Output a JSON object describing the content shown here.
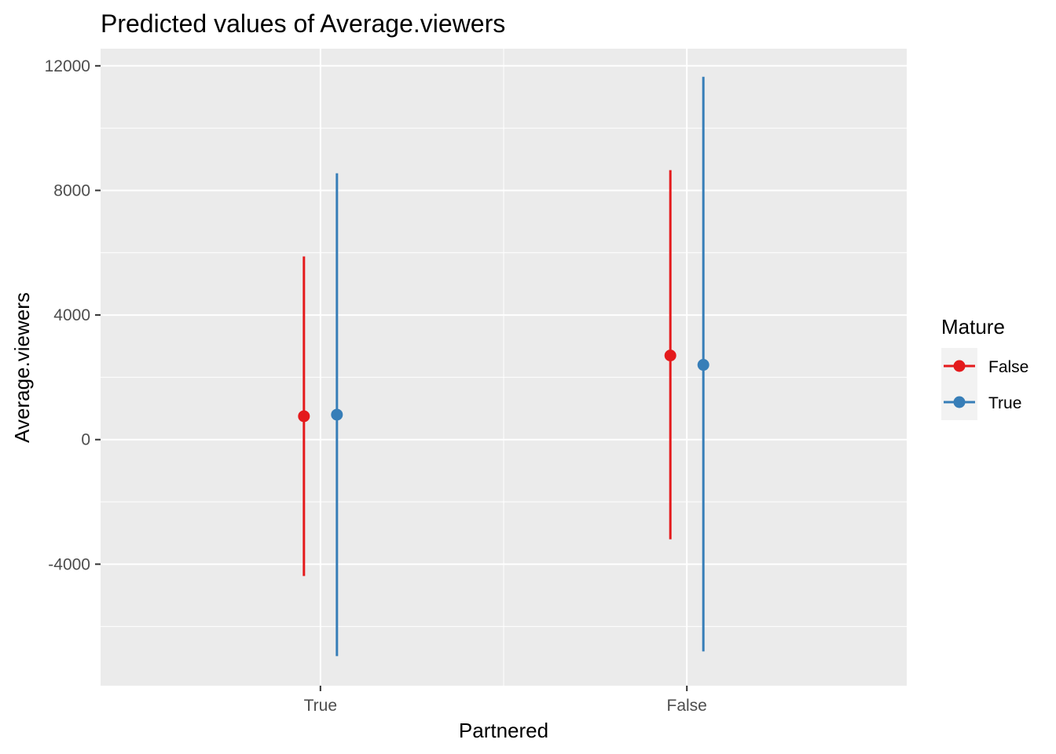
{
  "chart_data": {
    "type": "errorbar",
    "title": "Predicted values of Average.viewers",
    "xlabel": "Partnered",
    "ylabel": "Average.viewers",
    "categories": [
      "True",
      "False"
    ],
    "yticks": [
      -4000,
      0,
      4000,
      8000,
      12000
    ],
    "ytick_labels": [
      "-4000",
      "0",
      "4000",
      "8000",
      "12000"
    ],
    "ylim": [
      -7900,
      12550
    ],
    "grid": true,
    "legend": {
      "title": "Mature",
      "position": "right",
      "entries": [
        "False",
        "True"
      ]
    },
    "series": [
      {
        "name": "False",
        "color": "#E41A1C",
        "points": [
          {
            "x": "True",
            "y": 750,
            "low": -4380,
            "high": 5880
          },
          {
            "x": "False",
            "y": 2700,
            "low": -3200,
            "high": 8650
          }
        ]
      },
      {
        "name": "True",
        "color": "#377EB8",
        "points": [
          {
            "x": "True",
            "y": 800,
            "low": -6950,
            "high": 8550
          },
          {
            "x": "False",
            "y": 2400,
            "low": -6800,
            "high": 11650
          }
        ]
      }
    ]
  }
}
